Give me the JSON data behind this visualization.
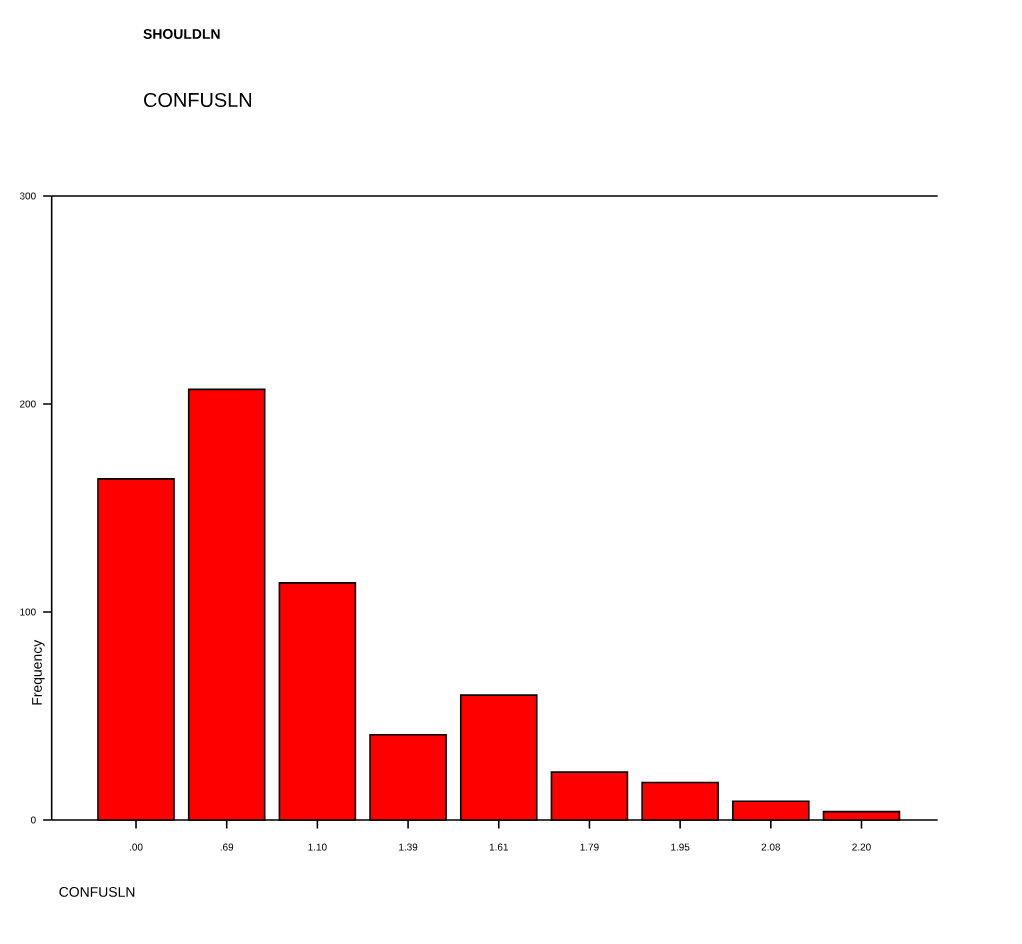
{
  "chart_data": {
    "type": "bar",
    "title": "SHOULDLN",
    "subtitle": "CONFUSLN",
    "xlabel": "CONFUSLN",
    "ylabel": "Frequency",
    "categories": [
      ".00",
      ".69",
      "1.10",
      "1.39",
      "1.61",
      "1.79",
      "1.95",
      "2.08",
      "2.20"
    ],
    "values": [
      164,
      207,
      114,
      41,
      60,
      23,
      18,
      9,
      4
    ],
    "color": "#ff0000",
    "ylim": [
      0,
      300
    ],
    "yticks": [
      0,
      100,
      200,
      300
    ],
    "grid": false
  }
}
